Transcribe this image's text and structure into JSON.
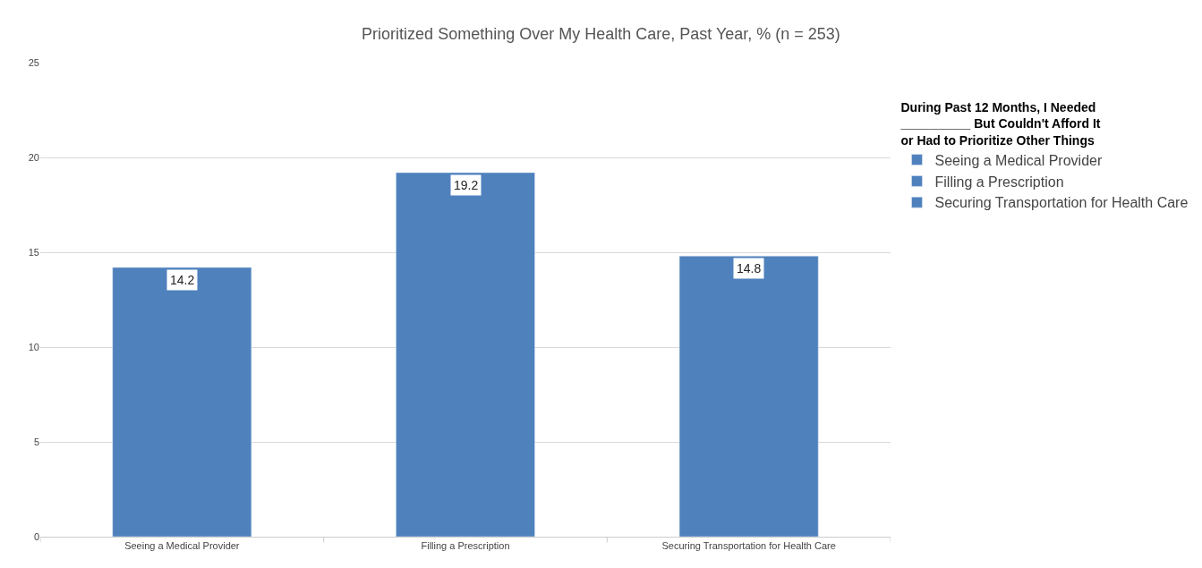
{
  "chart_data": {
    "type": "bar",
    "title": "Prioritized Something Over My Health Care, Past Year, % (n = 253)",
    "legend_title": "During Past 12 Months, I Needed __________ But Couldn't Afford It or Had to Prioritize Other Things",
    "categories": [
      "Seeing a Medical Provider",
      "Filling a Prescription",
      "Securing Transportation for Health Care"
    ],
    "series": [
      {
        "name": "Seeing a Medical Provider",
        "color": "#4f81bd",
        "values": [
          14.2,
          null,
          null
        ]
      },
      {
        "name": "Filling a Prescription",
        "color": "#4f81bd",
        "values": [
          null,
          19.2,
          null
        ]
      },
      {
        "name": "Securing Transportation for Health Care",
        "color": "#4f81bd",
        "values": [
          null,
          null,
          14.8
        ]
      }
    ],
    "ylim": [
      0,
      25
    ],
    "yticks": [
      0,
      5,
      10,
      15,
      20,
      25
    ],
    "grid": "y",
    "legend": "right",
    "data_labels": true
  }
}
